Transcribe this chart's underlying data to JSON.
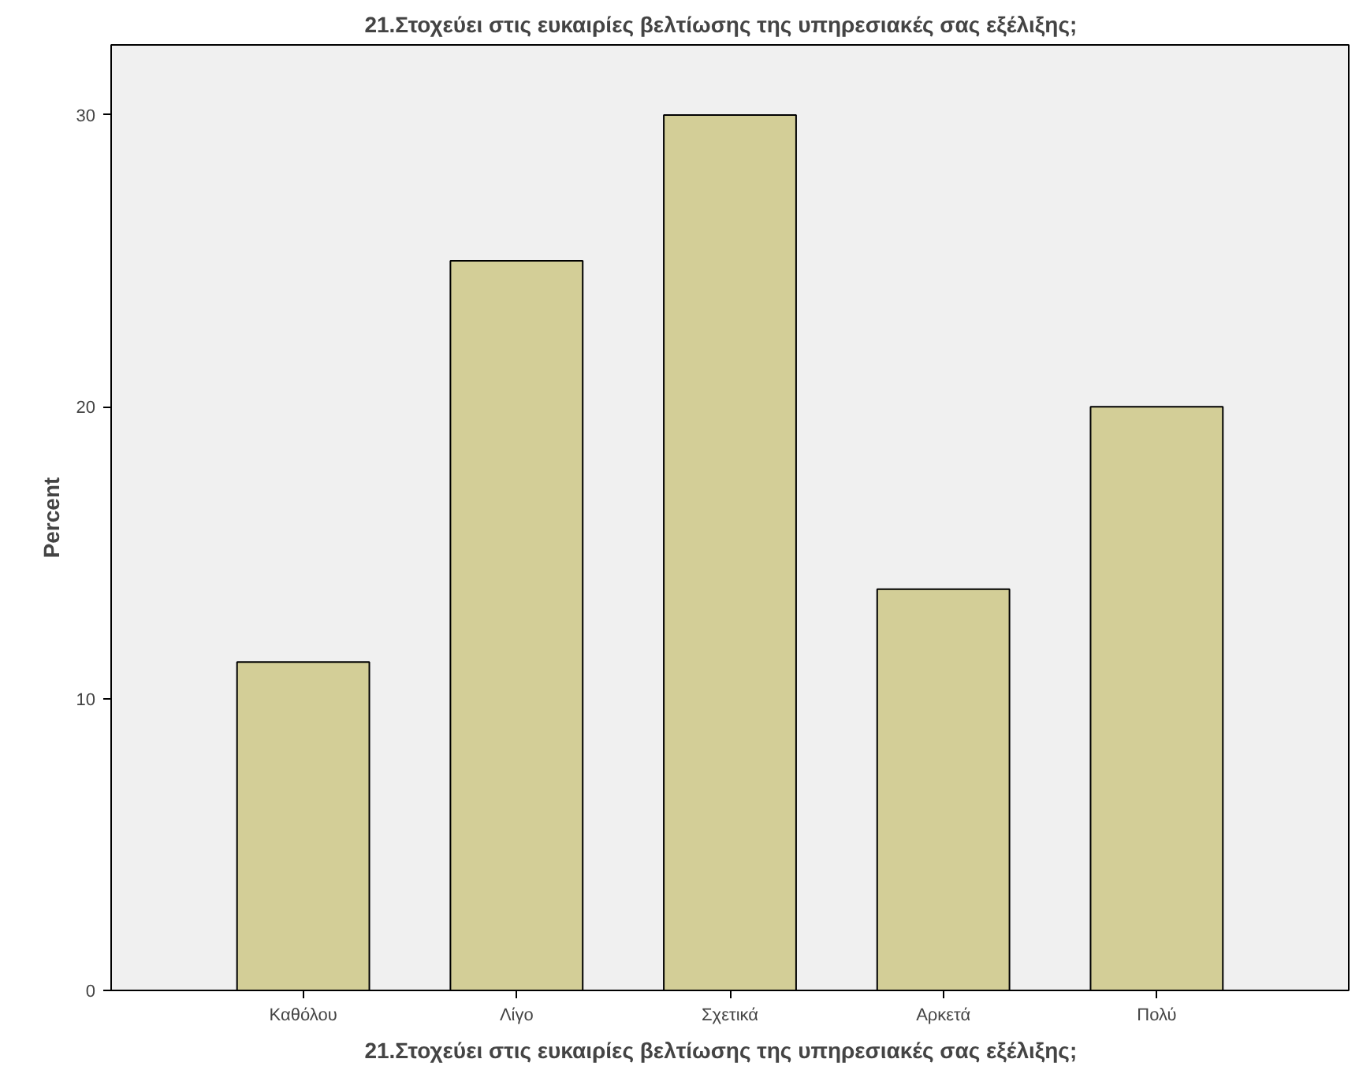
{
  "chart_data": {
    "type": "bar",
    "title": "21.Στοχεύει  στις ευκαιρίες βελτίωσης  της  υπηρεσιακές σας εξέλιξης;",
    "xlabel": "21.Στοχεύει  στις ευκαιρίες βελτίωσης  της  υπηρεσιακές σας εξέλιξης;",
    "ylabel": "Percent",
    "categories": [
      "Καθόλου",
      "Λίγο",
      "Σχετικά",
      "Αρκετά",
      "Πολύ"
    ],
    "values": [
      11.25,
      25,
      30,
      13.75,
      20
    ],
    "color": "#d3ce97",
    "ylim": [
      0,
      32.4
    ],
    "yticks": [
      0,
      10,
      20,
      30
    ],
    "grid": false
  }
}
